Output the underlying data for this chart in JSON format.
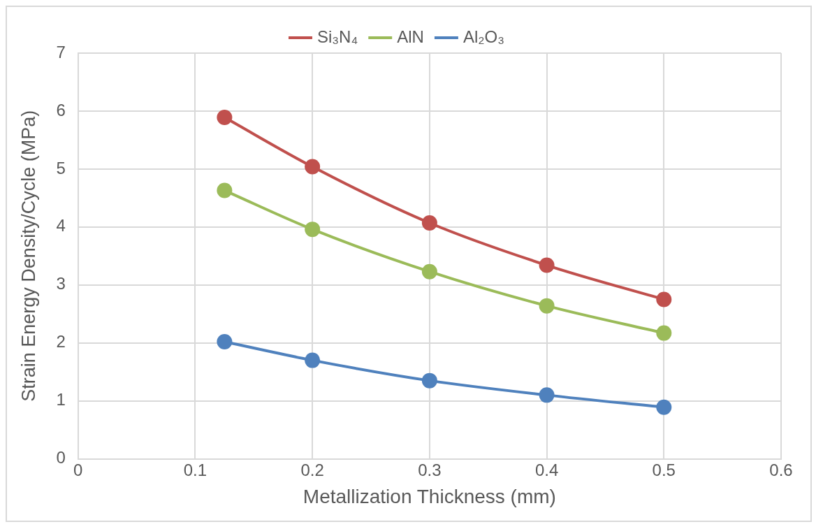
{
  "chart_data": {
    "type": "line",
    "xlabel": "Metallization Thickness (mm)",
    "ylabel": "Strain Energy Density/Cycle (MPa)",
    "x": [
      0.125,
      0.2,
      0.3,
      0.4,
      0.5
    ],
    "series": [
      {
        "name": "Si₃N₄",
        "color": "#c0504d",
        "values": [
          5.89,
          5.04,
          4.07,
          3.34,
          2.75
        ]
      },
      {
        "name": "AlN",
        "color": "#9bbb59",
        "values": [
          4.63,
          3.96,
          3.23,
          2.64,
          2.17
        ]
      },
      {
        "name": "Al₂O₃",
        "color": "#4f81bd",
        "values": [
          2.02,
          1.7,
          1.35,
          1.1,
          0.89
        ]
      }
    ],
    "xlim": [
      0,
      0.6
    ],
    "xticks": [
      0,
      0.1,
      0.2,
      0.3,
      0.4,
      0.5,
      0.6
    ],
    "ylim": [
      0,
      7
    ],
    "yticks": [
      0,
      1,
      2,
      3,
      4,
      5,
      6,
      7
    ],
    "grid": true,
    "legend": "top",
    "marker": "circle",
    "line_style": "solid"
  }
}
